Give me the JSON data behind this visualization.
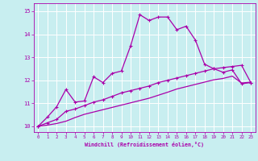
{
  "xlabel": "Windchill (Refroidissement éolien,°C)",
  "background_color": "#c8eef0",
  "line_color": "#aa00aa",
  "grid_color": "#ffffff",
  "x_ticks": [
    0,
    1,
    2,
    3,
    4,
    5,
    6,
    7,
    8,
    9,
    10,
    11,
    12,
    13,
    14,
    15,
    16,
    17,
    18,
    19,
    20,
    21,
    22,
    23
  ],
  "y_ticks": [
    10,
    11,
    12,
    13,
    14,
    15
  ],
  "ylim": [
    9.75,
    15.35
  ],
  "xlim": [
    -0.5,
    23.5
  ],
  "line1_x": [
    0,
    1,
    2,
    3,
    4,
    5,
    6,
    7,
    8,
    9,
    10,
    11,
    12,
    13,
    14,
    15,
    16,
    17,
    18,
    19,
    20,
    21,
    22,
    23
  ],
  "line1_y": [
    10.0,
    10.4,
    10.85,
    11.6,
    11.05,
    11.1,
    12.15,
    11.9,
    12.3,
    12.4,
    13.5,
    14.85,
    14.6,
    14.75,
    14.75,
    14.2,
    14.35,
    13.75,
    12.7,
    12.5,
    12.35,
    12.45,
    11.85,
    11.9
  ],
  "line2_x": [
    0,
    1,
    2,
    3,
    4,
    5,
    6,
    7,
    8,
    9,
    10,
    11,
    12,
    13,
    14,
    15,
    16,
    17,
    18,
    19,
    20,
    21,
    22,
    23
  ],
  "line2_y": [
    10.0,
    10.15,
    10.3,
    10.65,
    10.75,
    10.9,
    11.05,
    11.15,
    11.3,
    11.45,
    11.55,
    11.65,
    11.75,
    11.9,
    12.0,
    12.1,
    12.2,
    12.3,
    12.4,
    12.5,
    12.55,
    12.6,
    12.65,
    11.9
  ],
  "line3_x": [
    0,
    1,
    2,
    3,
    4,
    5,
    6,
    7,
    8,
    9,
    10,
    11,
    12,
    13,
    14,
    15,
    16,
    17,
    18,
    19,
    20,
    21,
    22,
    23
  ],
  "line3_y": [
    10.0,
    10.05,
    10.12,
    10.22,
    10.38,
    10.52,
    10.62,
    10.72,
    10.82,
    10.92,
    11.02,
    11.12,
    11.22,
    11.35,
    11.48,
    11.62,
    11.72,
    11.82,
    11.92,
    12.02,
    12.08,
    12.18,
    11.88,
    11.92
  ]
}
